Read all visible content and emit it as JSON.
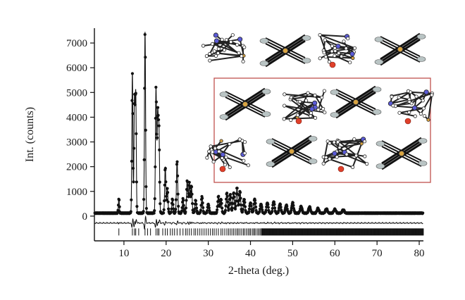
{
  "chart_data": {
    "type": "line",
    "title": "",
    "xlabel": "2-theta (deg.)",
    "ylabel": "Int. (counts)",
    "xlim": [
      3,
      81
    ],
    "ylim": [
      -1000,
      7600
    ],
    "xticks": [
      10,
      20,
      30,
      40,
      50,
      60,
      70,
      80
    ],
    "yticks": [
      0,
      1000,
      2000,
      3000,
      4000,
      5000,
      6000,
      7000
    ],
    "grid": false,
    "legend": "none",
    "series": [
      {
        "role": "observed",
        "color": "#111111",
        "marker": "filled-circle",
        "baseline": 120,
        "peaks": [
          {
            "x": 8.8,
            "y": 720
          },
          {
            "x": 12.0,
            "y": 5800
          },
          {
            "x": 12.5,
            "y": 4700
          },
          {
            "x": 12.8,
            "y": 4900
          },
          {
            "x": 15.0,
            "y": 7450
          },
          {
            "x": 17.6,
            "y": 5200
          },
          {
            "x": 18.0,
            "y": 4000
          },
          {
            "x": 18.3,
            "y": 3400
          },
          {
            "x": 19.8,
            "y": 2000
          },
          {
            "x": 20.3,
            "y": 1100
          },
          {
            "x": 21.5,
            "y": 700
          },
          {
            "x": 22.6,
            "y": 2250
          },
          {
            "x": 24.0,
            "y": 700
          },
          {
            "x": 25.0,
            "y": 1450
          },
          {
            "x": 25.5,
            "y": 1350
          },
          {
            "x": 26.0,
            "y": 1250
          },
          {
            "x": 27.0,
            "y": 650
          },
          {
            "x": 28.5,
            "y": 800
          },
          {
            "x": 30.0,
            "y": 500
          },
          {
            "x": 32.4,
            "y": 800
          },
          {
            "x": 33.0,
            "y": 700
          },
          {
            "x": 34.4,
            "y": 950
          },
          {
            "x": 35.2,
            "y": 900
          },
          {
            "x": 36.0,
            "y": 950
          },
          {
            "x": 36.8,
            "y": 1150
          },
          {
            "x": 37.5,
            "y": 1000
          },
          {
            "x": 38.5,
            "y": 700
          },
          {
            "x": 40.0,
            "y": 550
          },
          {
            "x": 41.0,
            "y": 700
          },
          {
            "x": 42.5,
            "y": 500
          },
          {
            "x": 44.0,
            "y": 550
          },
          {
            "x": 45.5,
            "y": 600
          },
          {
            "x": 47.0,
            "y": 500
          },
          {
            "x": 48.5,
            "y": 450
          },
          {
            "x": 50.0,
            "y": 550
          },
          {
            "x": 52.0,
            "y": 400
          },
          {
            "x": 54.0,
            "y": 380
          },
          {
            "x": 56.0,
            "y": 320
          },
          {
            "x": 58.0,
            "y": 300
          },
          {
            "x": 60.0,
            "y": 280
          },
          {
            "x": 62.0,
            "y": 260
          }
        ]
      },
      {
        "role": "calculated",
        "color": "#111111",
        "marker": "none"
      },
      {
        "role": "difference",
        "color": "#111111",
        "marker": "none",
        "offset": -280
      }
    ],
    "reflection_markers": {
      "y": -640,
      "positions": [
        8.8,
        12.0,
        12.5,
        12.8,
        13.5,
        15.0,
        15.6,
        16.3,
        17.6,
        18.0,
        18.3,
        19.2,
        19.8,
        20.3,
        21.0,
        21.5,
        22.0,
        22.6,
        23.3,
        24.0,
        24.6,
        25.0,
        25.5,
        26.0,
        26.6,
        27.0,
        27.5,
        28.0,
        28.5,
        29.0,
        29.5,
        30.0,
        30.5,
        31.0,
        31.4,
        31.9,
        32.4,
        33.0,
        33.4,
        33.9,
        34.4,
        34.8,
        35.2,
        35.6,
        36.0,
        36.4,
        36.8,
        37.1,
        37.5,
        37.9,
        38.3,
        38.6,
        39.0,
        39.4,
        39.7,
        40.0,
        40.4,
        40.7,
        41.0,
        41.3,
        41.7,
        42.0,
        42.3,
        42.6
      ],
      "dense_from": 42.6,
      "dense_to": 81
    },
    "inset": {
      "content": "crystal structure packing diagram",
      "frame_color": "#c0504d",
      "atom_colors": {
        "carbon": "#222222",
        "nitrogen": "#5b5bd6",
        "oxygen": "#e0402a",
        "metal": "#d9a441",
        "halogen": "#b9c4c4"
      }
    }
  }
}
